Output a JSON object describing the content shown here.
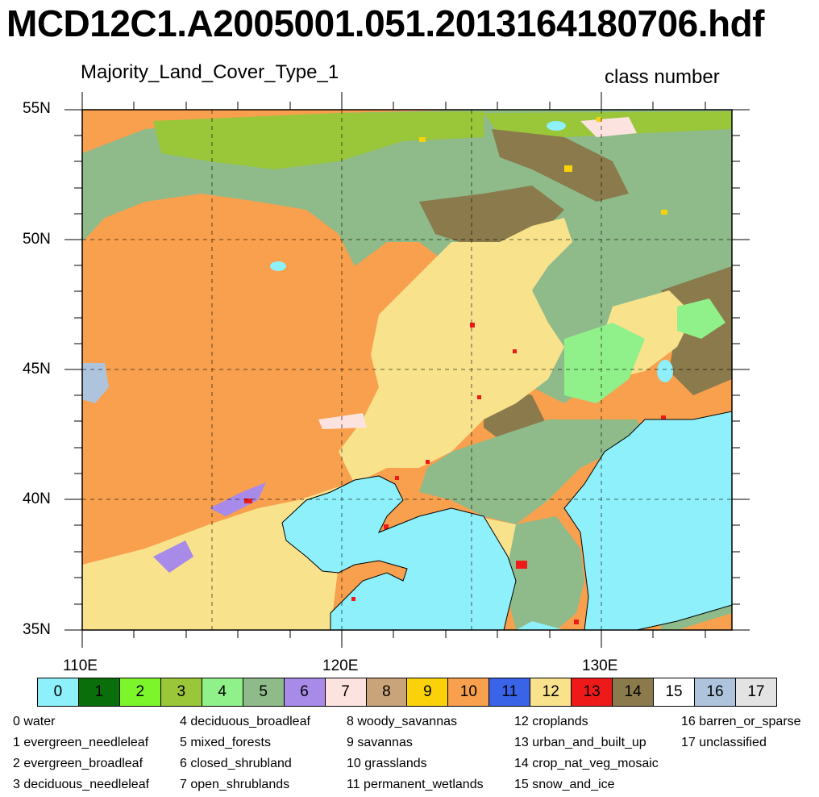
{
  "title": "MCD12C1.A2005001.051.2013164180706.hdf",
  "subtitle_left": "Majority_Land_Cover_Type_1",
  "subtitle_right": "class number",
  "map": {
    "lon_range": [
      110,
      135
    ],
    "lat_range": [
      35,
      55
    ],
    "lat_labels": [
      "55N",
      "50N",
      "45N",
      "40N",
      "35N"
    ],
    "lon_labels": [
      "110E",
      "120E",
      "130E"
    ],
    "gridlines": "dashed"
  },
  "colorbar": {
    "labels": [
      "0",
      "1",
      "2",
      "3",
      "4",
      "5",
      "6",
      "7",
      "8",
      "9",
      "10",
      "11",
      "12",
      "13",
      "14",
      "15",
      "16",
      "17"
    ],
    "colors": [
      "#8ef0fa",
      "#0a6e0a",
      "#7cf52a",
      "#9ac63a",
      "#90f08a",
      "#8fba8a",
      "#a88ae8",
      "#fce3e0",
      "#c9a379",
      "#fbd20a",
      "#f8a04e",
      "#3a64e8",
      "#f8e28c",
      "#ee1a1a",
      "#8a7a4c",
      "#ffffff",
      "#aec4dc",
      "#e3e3e3"
    ],
    "text_colors": [
      "#000",
      "#000",
      "#000",
      "#000",
      "#000",
      "#000",
      "#000",
      "#000",
      "#000",
      "#000",
      "#000",
      "#000",
      "#000",
      "#000",
      "#000",
      "#000",
      "#000",
      "#000"
    ]
  },
  "legend": [
    [
      "0 water",
      "1 evergreen_needleleaf",
      "2 evergreen_broadleaf",
      "3 deciduous_needleleaf"
    ],
    [
      "4 deciduous_broadleaf",
      "5 mixed_forests",
      "6 closed_shrubland",
      "7 open_shrublands"
    ],
    [
      "8 woody_savannas",
      "9 savannas",
      "10 grasslands",
      "11 permanent_wetlands"
    ],
    [
      "12 croplands",
      "13 urban_and_built_up",
      "14 crop_nat_veg_mosaic",
      "15 snow_and_ice"
    ],
    [
      "16 barren_or_sparse",
      "17 unclassified"
    ]
  ]
}
